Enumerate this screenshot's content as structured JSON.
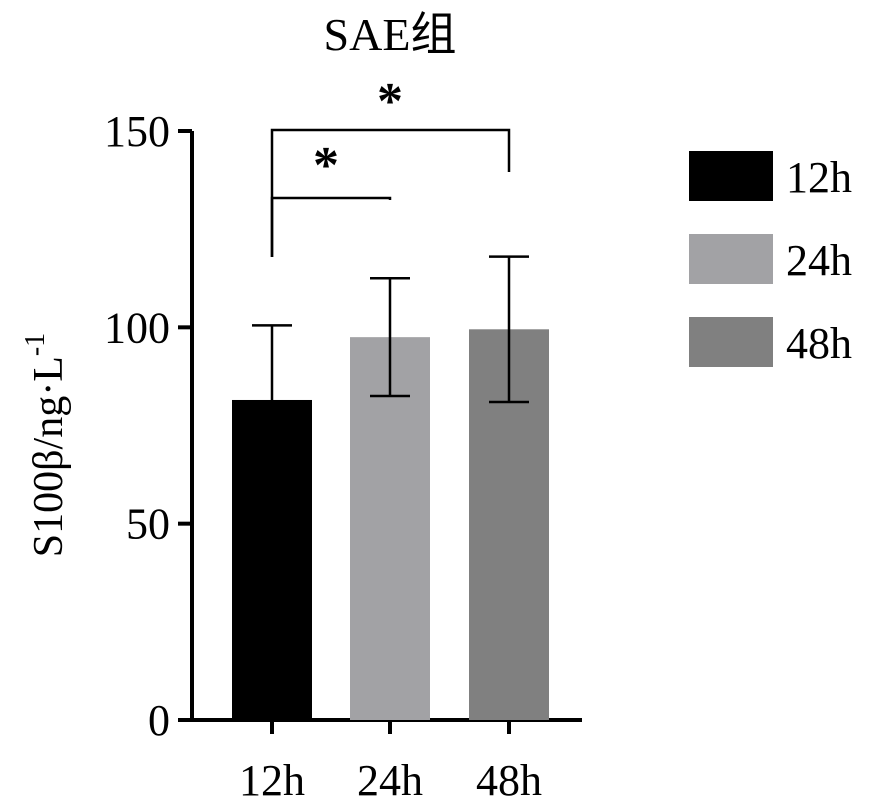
{
  "chart_data": {
    "type": "bar",
    "title": "SAE组",
    "ylabel": {
      "main": "S100β/ng·L",
      "superscript": "-1"
    },
    "xlabel": "",
    "ylim": [
      0,
      150
    ],
    "yticks": [
      0,
      50,
      100,
      150
    ],
    "categories": [
      "12h",
      "24h",
      "48h"
    ],
    "values": [
      81.5,
      97.5,
      99.5
    ],
    "error": [
      19,
      15,
      18.5
    ],
    "colors": [
      "#000000",
      "#a2a2a5",
      "#808080"
    ],
    "legend": {
      "position": "right",
      "entries": [
        "12h",
        "24h",
        "48h"
      ]
    },
    "significance": [
      {
        "from": 0,
        "to": 1,
        "label": "*"
      },
      {
        "from": 0,
        "to": 2,
        "label": "*"
      }
    ],
    "grid": false
  }
}
